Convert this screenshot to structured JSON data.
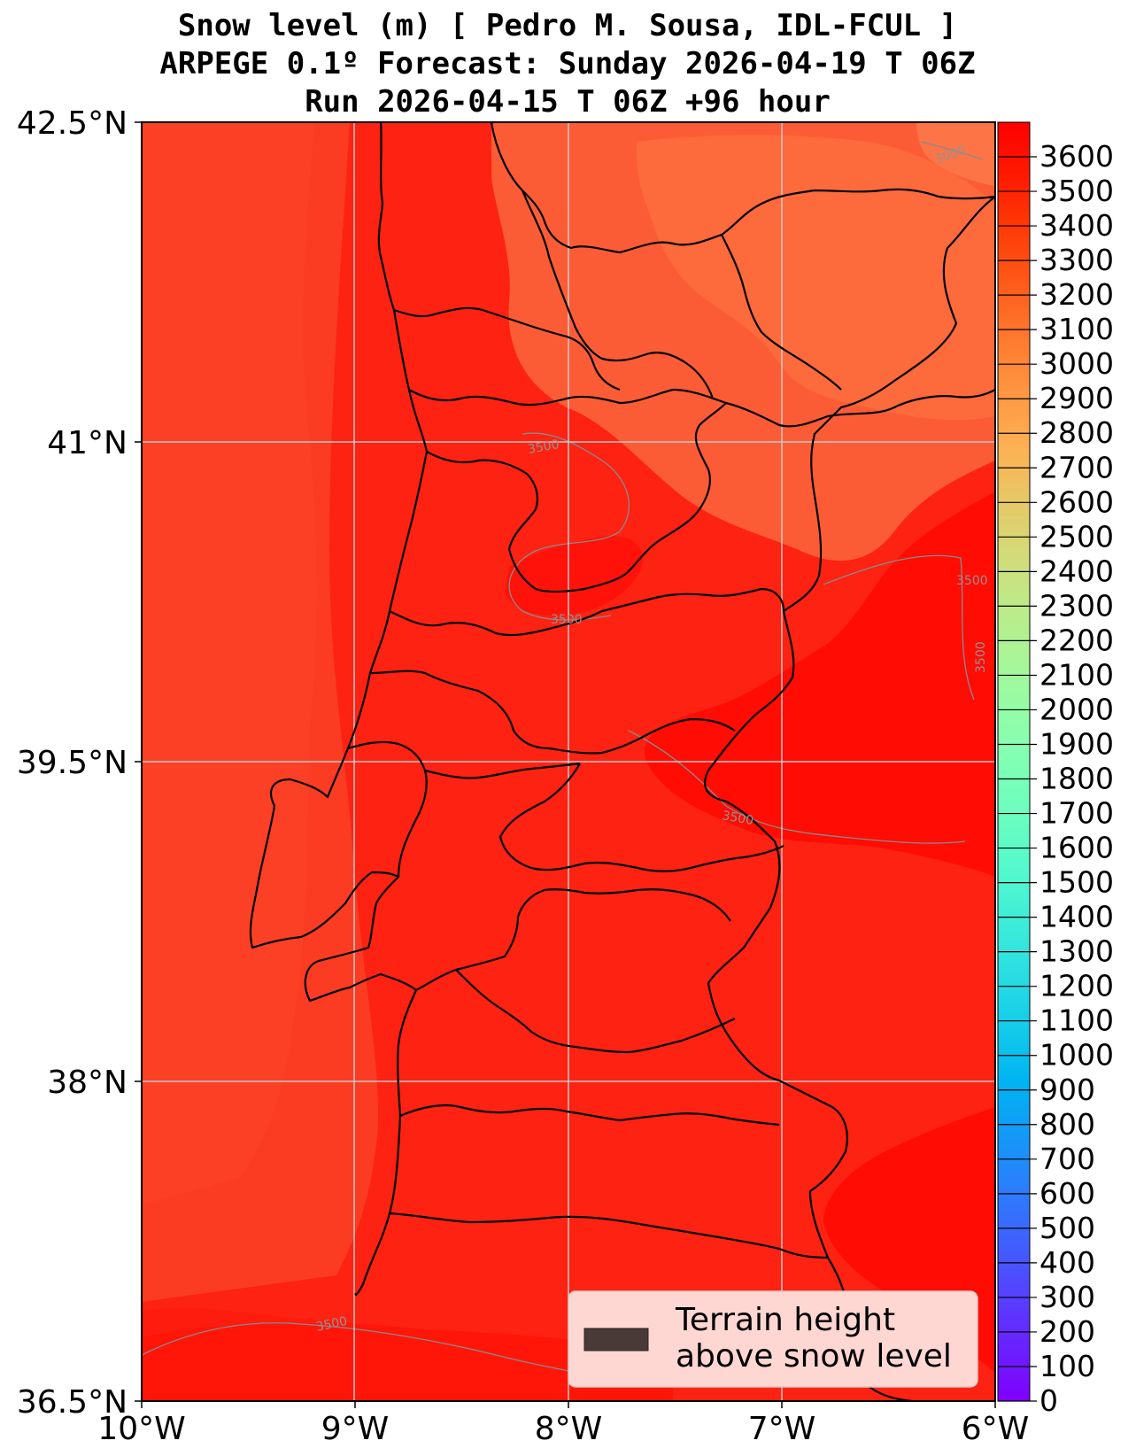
{
  "title": {
    "line1": "Snow level (m) [ Pedro M. Sousa, IDL-FCUL ]",
    "line2": "ARPEGE 0.1º Forecast: Sunday 2026-04-19 T 06Z",
    "line3": "Run 2026-04-15 T 06Z +96 hour"
  },
  "map": {
    "lon_range": [
      -10,
      -6
    ],
    "lat_range": [
      36.5,
      42.5
    ],
    "lon_ticks": [
      {
        "value": -10,
        "label": "10°W"
      },
      {
        "value": -9,
        "label": "9°W"
      },
      {
        "value": -8,
        "label": "8°W"
      },
      {
        "value": -7,
        "label": "7°W"
      },
      {
        "value": -6,
        "label": "6°W"
      }
    ],
    "lat_ticks": [
      {
        "value": 42.5,
        "label": "42.5°N"
      },
      {
        "value": 41,
        "label": "41°N"
      },
      {
        "value": 39.5,
        "label": "39.5°N"
      },
      {
        "value": 38,
        "label": "38°N"
      },
      {
        "value": 36.5,
        "label": "36.5°N"
      }
    ],
    "contour_labels": [
      "3000",
      "3500",
      "3500",
      "3500",
      "3500",
      "3500",
      "3500"
    ],
    "field_colors": {
      "sea_low": "#fd1e0f",
      "ocean_band": "#fb3c22",
      "land_main": "#fd2212",
      "north_high": "#fc5c35",
      "northeast": "#fd6a3c",
      "east_max": "#ff0c05"
    }
  },
  "colorbar": {
    "min": 0,
    "max": 3700,
    "labels": [
      "0",
      "100",
      "200",
      "300",
      "400",
      "500",
      "600",
      "700",
      "800",
      "900",
      "1000",
      "1100",
      "1200",
      "1300",
      "1400",
      "1500",
      "1600",
      "1700",
      "1800",
      "1900",
      "2000",
      "2100",
      "2200",
      "2300",
      "2400",
      "2500",
      "2600",
      "2700",
      "2800",
      "2900",
      "3000",
      "3100",
      "3200",
      "3300",
      "3400",
      "3500",
      "3600"
    ],
    "colors": [
      "#8000ff",
      "#6a21ff",
      "#5542fe",
      "#3f61fd",
      "#2a7ffb",
      "#1499f7",
      "#00b4f2",
      "#14cbea",
      "#2adde2",
      "#3eedd8",
      "#55f9cd",
      "#6bfec0",
      "#80ffb4",
      "#95fca6",
      "#aaf597",
      "#bfe987",
      "#d5d976",
      "#eac564",
      "#ffae52",
      "#ff9440",
      "#ff782d",
      "#ff5a1a",
      "#ff3b07",
      "#ff1a00",
      "#ff0000"
    ]
  },
  "legend": {
    "line1": "Terrain height",
    "line2": "above snow level",
    "swatch_color": "#493a38"
  }
}
